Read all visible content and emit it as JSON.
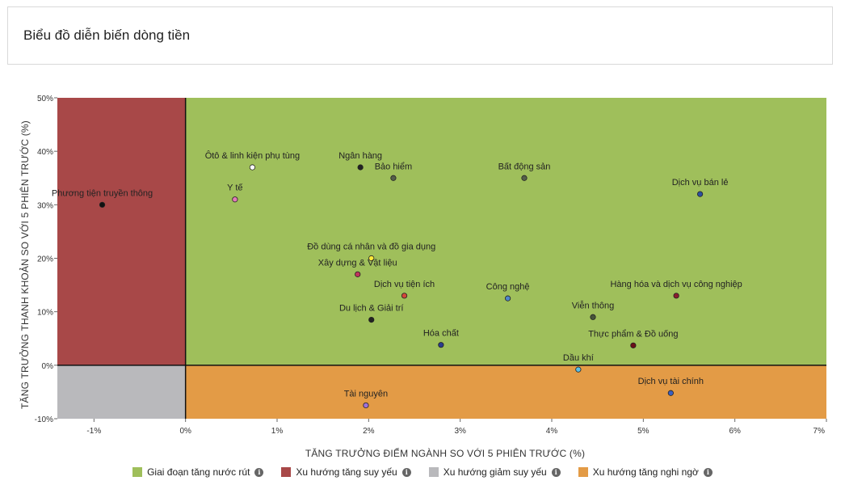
{
  "header": {
    "title": "Biểu đồ diễn biến dòng tiền"
  },
  "chart_data": {
    "type": "scatter",
    "xlabel": "TĂNG TRƯỞNG ĐIỂM NGÀNH SO VỚI 5 PHIÊN TRƯỚC (%)",
    "ylabel": "TĂNG TRƯỞNG THANH KHOẢN SO VỚI 5 PHIÊN TRƯỚC (%)",
    "xlim": [
      -1.4,
      7
    ],
    "ylim": [
      -10,
      50
    ],
    "x_ticks": [
      {
        "v": -1,
        "label": "-1%"
      },
      {
        "v": 0,
        "label": "0%"
      },
      {
        "v": 1,
        "label": "1%"
      },
      {
        "v": 2,
        "label": "2%"
      },
      {
        "v": 3,
        "label": "3%"
      },
      {
        "v": 4,
        "label": "4%"
      },
      {
        "v": 5,
        "label": "5%"
      },
      {
        "v": 6,
        "label": "6%"
      },
      {
        "v": 7,
        "label": "7%"
      }
    ],
    "y_ticks": [
      {
        "v": 50,
        "label": "50%"
      },
      {
        "v": 40,
        "label": "40%"
      },
      {
        "v": 30,
        "label": "30%"
      },
      {
        "v": 20,
        "label": "20%"
      },
      {
        "v": 10,
        "label": "10%"
      },
      {
        "v": 0,
        "label": "0%"
      },
      {
        "v": -10,
        "label": "-10%"
      }
    ],
    "quadrants": [
      {
        "name": "Giai đoạn tăng nước rút",
        "color": "#9fbf5b",
        "x": [
          0,
          7
        ],
        "y": [
          0,
          50
        ]
      },
      {
        "name": "Xu hướng tăng suy yếu",
        "color": "#a84848",
        "x": [
          -1.4,
          0
        ],
        "y": [
          0,
          50
        ]
      },
      {
        "name": "Xu hướng giảm suy yếu",
        "color": "#b9b9bc",
        "x": [
          -1.4,
          0
        ],
        "y": [
          -10,
          0
        ]
      },
      {
        "name": "Xu hướng tăng nghi ngờ",
        "color": "#e39b46",
        "x": [
          0,
          7
        ],
        "y": [
          -10,
          0
        ]
      }
    ],
    "points": [
      {
        "name": "Phương tiện truyền thông",
        "x": -0.91,
        "y": 30.0,
        "color": "#111111"
      },
      {
        "name": "Ôtô & linh kiện phụ tùng",
        "x": 0.73,
        "y": 37.0,
        "color": "#ffffff"
      },
      {
        "name": "Y tế",
        "x": 0.54,
        "y": 31.0,
        "color": "#e07ab8"
      },
      {
        "name": "Ngân hàng",
        "x": 1.91,
        "y": 37.0,
        "color": "#222222"
      },
      {
        "name": "Bảo hiểm",
        "x": 2.27,
        "y": 35.0,
        "color": "#55604a"
      },
      {
        "name": "Bất động sản",
        "x": 3.7,
        "y": 35.0,
        "color": "#55604a"
      },
      {
        "name": "Dịch vụ bán lẻ",
        "x": 5.62,
        "y": 32.0,
        "color": "#2d4fa0"
      },
      {
        "name": "Đồ dùng cá nhân và đồ gia dụng",
        "x": 2.03,
        "y": 20.0,
        "color": "#ffe83a"
      },
      {
        "name": "Xây dựng & Vật liệu",
        "x": 1.88,
        "y": 17.0,
        "color": "#c0355c"
      },
      {
        "name": "Dịch vụ tiện ích",
        "x": 2.39,
        "y": 13.0,
        "color": "#d2473a"
      },
      {
        "name": "Công nghệ",
        "x": 3.52,
        "y": 12.5,
        "color": "#4f86c9"
      },
      {
        "name": "Du lịch & Giải trí",
        "x": 2.03,
        "y": 8.5,
        "color": "#222222"
      },
      {
        "name": "Viễn thông",
        "x": 4.45,
        "y": 9.0,
        "color": "#46553a"
      },
      {
        "name": "Hàng hóa và dịch vụ công nghiệp",
        "x": 5.36,
        "y": 13.0,
        "color": "#8a1d2e"
      },
      {
        "name": "Hóa chất",
        "x": 2.79,
        "y": 3.8,
        "color": "#2a3c8f"
      },
      {
        "name": "Thực phẩm & Đồ uống",
        "x": 4.89,
        "y": 3.7,
        "color": "#6b0f18"
      },
      {
        "name": "Dầu khí",
        "x": 4.29,
        "y": -0.8,
        "color": "#5bc0e8"
      },
      {
        "name": "Tài nguyên",
        "x": 1.97,
        "y": -7.5,
        "color": "#a070d8"
      },
      {
        "name": "Dịch vụ tài chính",
        "x": 5.3,
        "y": -5.2,
        "color": "#3b5fc0"
      }
    ]
  },
  "legend": [
    {
      "label": "Giai đoạn tăng nước rút",
      "color": "#9fbf5b",
      "icon": "info-icon"
    },
    {
      "label": "Xu hướng tăng suy yếu",
      "color": "#a84848",
      "icon": "info-icon"
    },
    {
      "label": "Xu hướng giảm suy yếu",
      "color": "#b9b9bc",
      "icon": "info-icon"
    },
    {
      "label": "Xu hướng tăng nghi ngờ",
      "color": "#e39b46",
      "icon": "info-icon"
    }
  ]
}
